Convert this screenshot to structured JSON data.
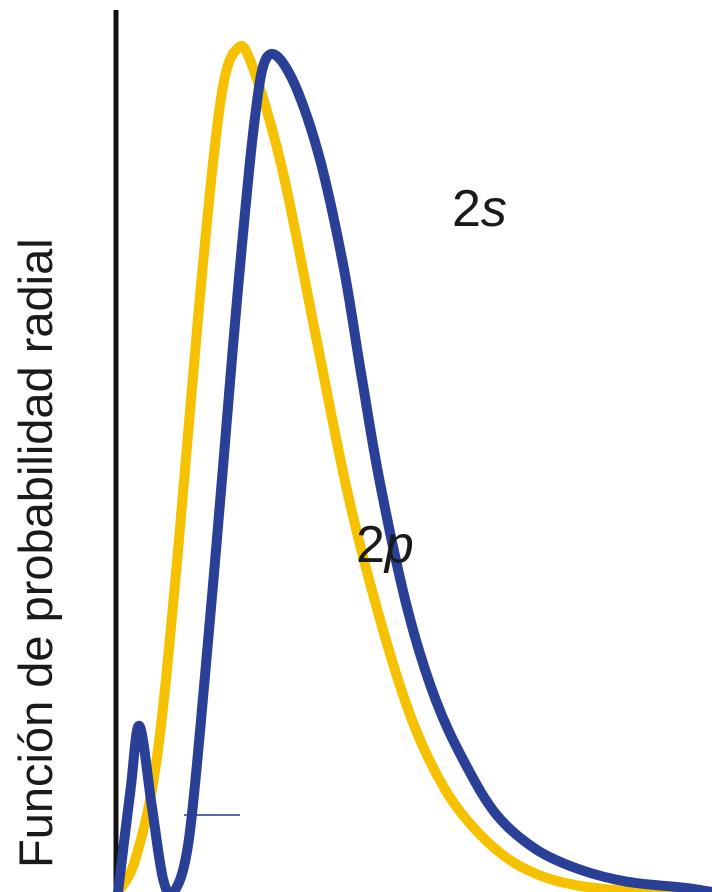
{
  "chart_data": {
    "type": "line",
    "ylabel": "Función de probabilidad radial",
    "xlabel": "",
    "title": "",
    "grid": false,
    "x_range": [
      0,
      1
    ],
    "y_range": [
      0,
      1
    ],
    "series": [
      {
        "name": "2s",
        "name_number": "2",
        "name_letter": "s",
        "color": "#2a3f96",
        "x": [
          0.0,
          0.021,
          0.036,
          0.057,
          0.076,
          0.094,
          0.119,
          0.146,
          0.177,
          0.201,
          0.229,
          0.251,
          0.289,
          0.336,
          0.378,
          0.409,
          0.441,
          0.488,
          0.535,
          0.585,
          0.638,
          0.704,
          0.779,
          0.858,
          0.953,
          1.0
        ],
        "y": [
          0.0,
          0.12,
          0.195,
          0.1,
          0.015,
          0.0,
          0.06,
          0.25,
          0.5,
          0.7,
          0.9,
          0.98,
          0.96,
          0.87,
          0.74,
          0.61,
          0.48,
          0.33,
          0.225,
          0.15,
          0.09,
          0.05,
          0.026,
          0.012,
          0.005,
          0.0
        ]
      },
      {
        "name": "2p",
        "name_number": "2",
        "name_letter": "p",
        "color": "#f6c100",
        "x": [
          0.0,
          0.03,
          0.066,
          0.101,
          0.138,
          0.173,
          0.201,
          0.226,
          0.276,
          0.331,
          0.386,
          0.441,
          0.496,
          0.551,
          0.606,
          0.661,
          0.716,
          0.771,
          0.826,
          0.881,
          0.936,
          1.0
        ],
        "y": [
          0.0,
          0.04,
          0.16,
          0.4,
          0.7,
          0.93,
          0.99,
          0.97,
          0.85,
          0.66,
          0.47,
          0.32,
          0.2,
          0.12,
          0.07,
          0.037,
          0.018,
          0.008,
          0.003,
          0.001,
          0.0,
          0.0
        ]
      }
    ]
  }
}
